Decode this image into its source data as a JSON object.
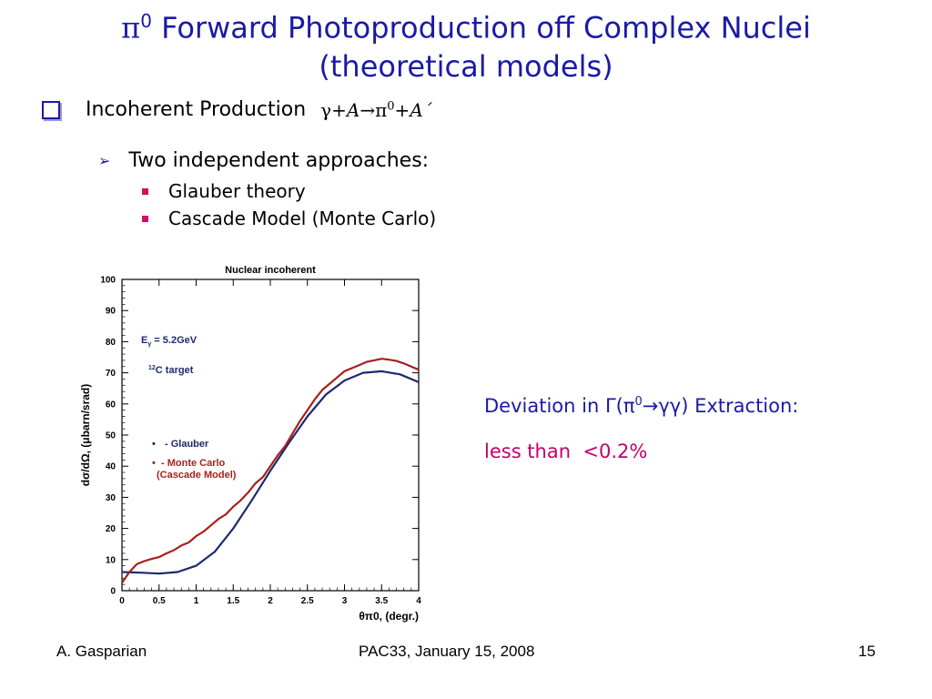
{
  "slide": {
    "title_pi": "π",
    "title_sup": "0",
    "title_main": "Forward Photoproduction off Complex Nuclei",
    "title_line2": "(theoretical models)",
    "bullet1_label": "Incoherent Production",
    "bullet1_formula": {
      "gamma": "γ",
      "plus1": "+",
      "A1": "A",
      "arrow": "→",
      "pi": "π",
      "sup": "0",
      "plus2": "+",
      "A2": "A´"
    },
    "bullet2_label": "Two independent approaches:",
    "sub_bullets": [
      "Glauber theory",
      "Cascade Model (Monte Carlo)"
    ],
    "note1": {
      "pre": "Deviation in Γ(π",
      "sup": "0",
      "post": "→γγ) Extraction:"
    },
    "note2": "less than  <0.2%",
    "footer_left": "A. Gasparian",
    "footer_center": "PAC33, January 15, 2008",
    "footer_right": "15",
    "colors": {
      "title_blue": "#1a1aa6",
      "bullet_magenta": "#d01060",
      "note_magenta": "#c4006a",
      "glauber_navy": "#1c2a6e",
      "cascade_red": "#a8201e"
    }
  },
  "chart_data": {
    "type": "line",
    "title": "Nuclear incoherent",
    "xlabel": "θπ0, (degr.)",
    "ylabel": "dσ/dΩ, (μbarn/srad)",
    "xlim": [
      0,
      4
    ],
    "ylim": [
      0,
      100
    ],
    "x_ticks": [
      "0",
      "0.5",
      "1",
      "1.5",
      "2",
      "2.5",
      "3",
      "3.5",
      "4"
    ],
    "y_ticks": [
      "0",
      "10",
      "20",
      "30",
      "40",
      "50",
      "60",
      "70",
      "80",
      "90",
      "100"
    ],
    "annotations": [
      {
        "text_main": "E",
        "text_sub": "γ",
        "text_after": " = 5.2GeV"
      },
      {
        "text_sup": "12",
        "text_after": "C target"
      }
    ],
    "legend": [
      {
        "marker": "•",
        "label": "- Glauber",
        "color": "#1c2a6e"
      },
      {
        "marker": "•",
        "label": "- Monte Carlo",
        "label2": "(Cascade Model)",
        "color": "#a8201e"
      }
    ],
    "series": [
      {
        "name": "Glauber",
        "color": "#1c2a6e",
        "x": [
          0,
          0.25,
          0.5,
          0.75,
          1.0,
          1.25,
          1.5,
          1.75,
          2.0,
          2.25,
          2.5,
          2.75,
          3.0,
          3.25,
          3.5,
          3.75,
          4.0
        ],
        "y": [
          6.0,
          5.8,
          5.5,
          6.0,
          8.0,
          12.5,
          20.0,
          29.0,
          38.5,
          47.5,
          56.0,
          63.0,
          67.5,
          70.0,
          70.5,
          69.5,
          67.0
        ]
      },
      {
        "name": "Monte Carlo",
        "color": "#a8201e",
        "x": [
          0,
          0.1,
          0.2,
          0.3,
          0.4,
          0.5,
          0.6,
          0.7,
          0.8,
          0.9,
          1.0,
          1.1,
          1.2,
          1.3,
          1.4,
          1.5,
          1.6,
          1.7,
          1.8,
          1.9,
          2.0,
          2.1,
          2.2,
          2.3,
          2.4,
          2.5,
          2.6,
          2.7,
          2.8,
          2.9,
          3.0,
          3.1,
          3.2,
          3.3,
          3.4,
          3.5,
          3.6,
          3.7,
          3.8,
          3.9,
          4.0
        ],
        "y": [
          2.5,
          6.0,
          8.5,
          9.5,
          10.2,
          10.8,
          12.0,
          13.0,
          14.5,
          15.5,
          17.5,
          19.0,
          21.0,
          23.0,
          24.5,
          27.0,
          29.0,
          31.5,
          34.5,
          36.5,
          40.0,
          43.5,
          46.5,
          50.5,
          54.5,
          58.0,
          61.5,
          64.5,
          66.5,
          68.5,
          70.5,
          71.5,
          72.5,
          73.5,
          74.0,
          74.5,
          74.2,
          73.8,
          73.0,
          72.0,
          71.0
        ]
      }
    ]
  }
}
